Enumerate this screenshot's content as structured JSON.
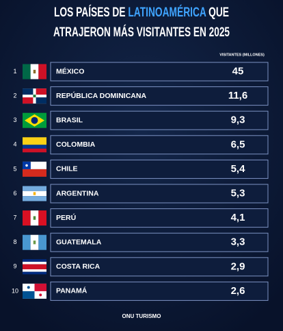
{
  "header": {
    "title_line1_start": "LOS PAÍSES DE ",
    "title_highlight": "LATINOAMÉRICA",
    "title_line1_end": " QUE",
    "title_line2": "ATRAJERON MÁS VISITANTES EN 2025",
    "column_label": "VISITANTES (MILLONES)"
  },
  "table": {
    "rows": [
      [
        "1",
        "MÉXICO",
        "45"
      ],
      [
        "2",
        "REPÚBLICA DOMINICANA",
        "11,6"
      ],
      [
        "3",
        "BRASIL",
        "9,3"
      ],
      [
        "4",
        "COLOMBIA",
        "6,5"
      ],
      [
        "5",
        "CHILE",
        "5,4"
      ],
      [
        "6",
        "ARGENTINA",
        "5,3"
      ],
      [
        "7",
        "PERÚ",
        "4,1"
      ],
      [
        "8",
        "GUATEMALA",
        "3,3"
      ],
      [
        "9",
        "COSTA RICA",
        "2,9"
      ],
      [
        "10",
        "PANAMÁ",
        "2,6"
      ]
    ]
  },
  "footer": {
    "source": "ONU TURISMO"
  }
}
